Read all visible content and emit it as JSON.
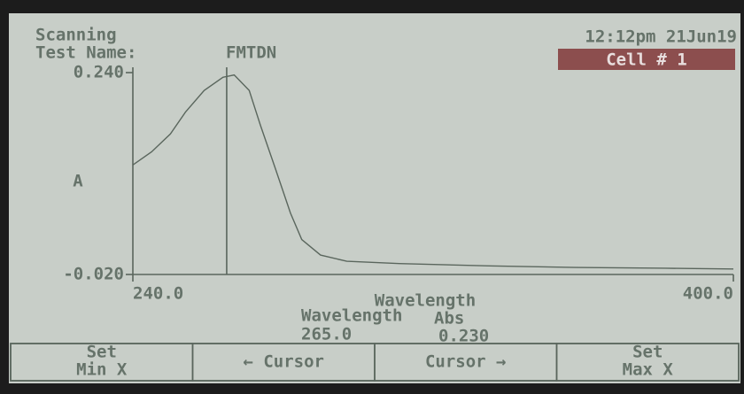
{
  "header": {
    "status": "Scanning",
    "test_name_label": "Test Name:",
    "test_name": "FMTDN",
    "datetime": "12:12pm 21Jun19",
    "cell": "Cell # 1"
  },
  "chart_data": {
    "type": "line",
    "xlabel": "Wavelength",
    "ylabel": "A",
    "x": [
      240,
      245,
      250,
      254,
      259,
      264,
      267,
      271,
      274,
      278,
      282,
      285,
      290,
      297,
      311,
      335,
      358,
      382,
      400
    ],
    "series": [
      {
        "color": "#5a665d",
        "values": [
          0.121,
          0.138,
          0.161,
          0.189,
          0.217,
          0.234,
          0.237,
          0.217,
          0.172,
          0.116,
          0.059,
          0.025,
          0.005,
          -0.003,
          -0.006,
          -0.009,
          -0.011,
          -0.012,
          -0.013
        ]
      }
    ],
    "xlim": [
      240,
      400
    ],
    "ylim": [
      -0.02,
      0.24
    ],
    "xticks": [
      {
        "value": 240,
        "label": "240.0"
      },
      {
        "value": 400,
        "label": "400.0"
      }
    ],
    "yticks": [
      {
        "value": -0.02,
        "label": "-0.020"
      },
      {
        "value": 0.24,
        "label": "0.240"
      }
    ],
    "cursor": 265
  },
  "readout": {
    "wavelength_label": "Wavelength",
    "abs_label": "Abs",
    "wavelength": "265.0",
    "abs": "0.230"
  },
  "buttons": [
    {
      "lines": [
        "Set",
        "Min X"
      ]
    },
    {
      "lines": [
        "← Cursor"
      ]
    },
    {
      "lines": [
        "Cursor →"
      ]
    },
    {
      "lines": [
        "Set",
        "Max X"
      ]
    }
  ]
}
